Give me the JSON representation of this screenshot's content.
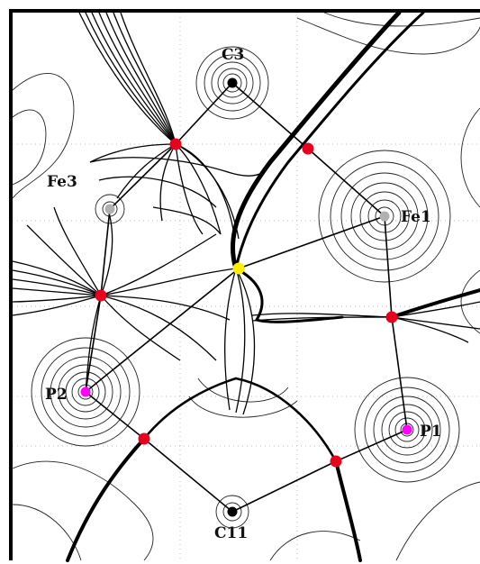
{
  "atoms": [
    {
      "id": "C3",
      "label": "C3",
      "color": "#000000"
    },
    {
      "id": "Fe1",
      "label": "Fe1",
      "color": "#b0b0b0"
    },
    {
      "id": "Fe3",
      "label": "Fe3",
      "color": "#b0b0b0"
    },
    {
      "id": "P2",
      "label": "P2",
      "color": "#ff00ff"
    },
    {
      "id": "P1",
      "label": "P1",
      "color": "#ff00ff"
    },
    {
      "id": "C11",
      "label": "C11",
      "color": "#000000"
    }
  ],
  "critical_points": {
    "bond_color": "#e8001c",
    "ring_color": "#ffee00"
  }
}
